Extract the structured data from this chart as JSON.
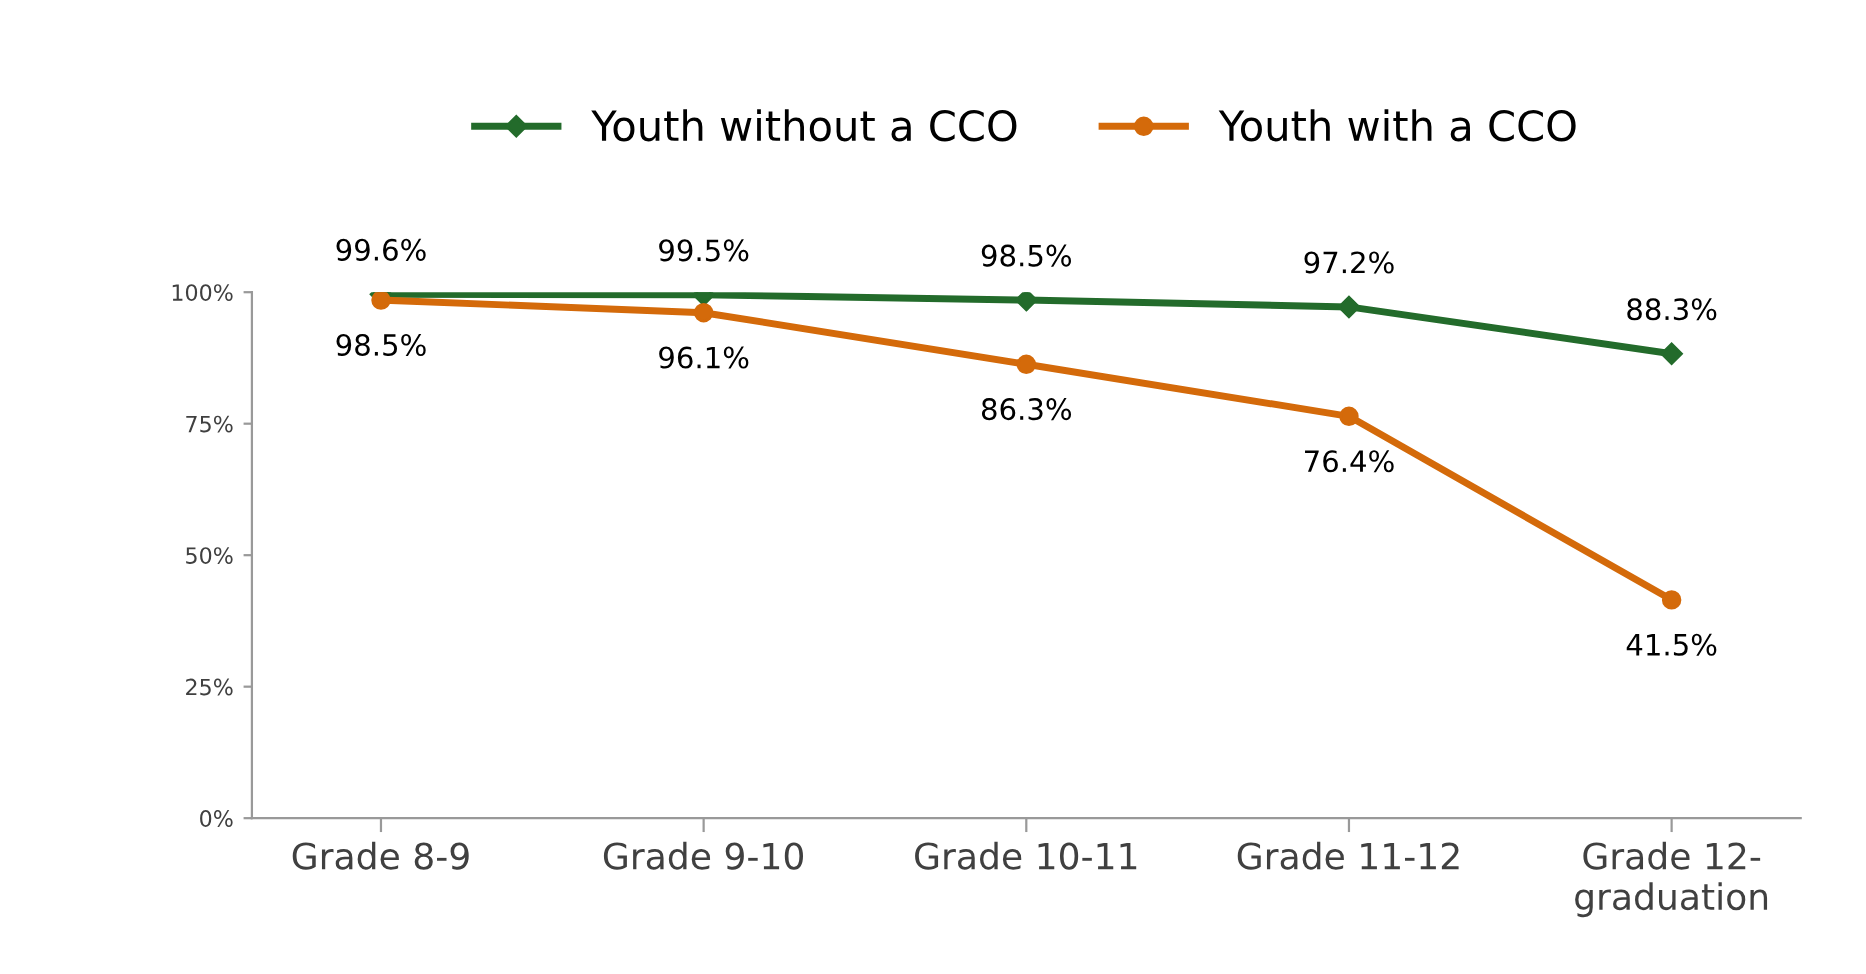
{
  "chart_data": {
    "type": "line",
    "categories": [
      "Grade 8-9",
      "Grade 9-10",
      "Grade 10-11",
      "Grade 11-12",
      "Grade 12-\ngraduation"
    ],
    "series": [
      {
        "name": "Youth without a CCO",
        "color": "#236b2b",
        "marker": "diamond",
        "values": [
          99.6,
          99.5,
          98.5,
          97.2,
          88.3
        ],
        "value_labels": [
          "99.6%",
          "99.5%",
          "98.5%",
          "97.2%",
          "88.3%"
        ]
      },
      {
        "name": "Youth with a CCO",
        "color": "#d46a0a",
        "marker": "circle",
        "values": [
          98.5,
          96.1,
          86.3,
          76.4,
          41.5
        ],
        "value_labels": [
          "98.5%",
          "96.1%",
          "86.3%",
          "76.4%",
          "41.5%"
        ]
      }
    ],
    "ylim": [
      0,
      100
    ],
    "yticks": [
      {
        "value": 0,
        "label": "0%"
      },
      {
        "value": 25,
        "label": "25%"
      },
      {
        "value": 50,
        "label": "50%"
      },
      {
        "value": 75,
        "label": "75%"
      },
      {
        "value": 100,
        "label": "100%"
      }
    ],
    "grid": false,
    "legend": "top"
  }
}
